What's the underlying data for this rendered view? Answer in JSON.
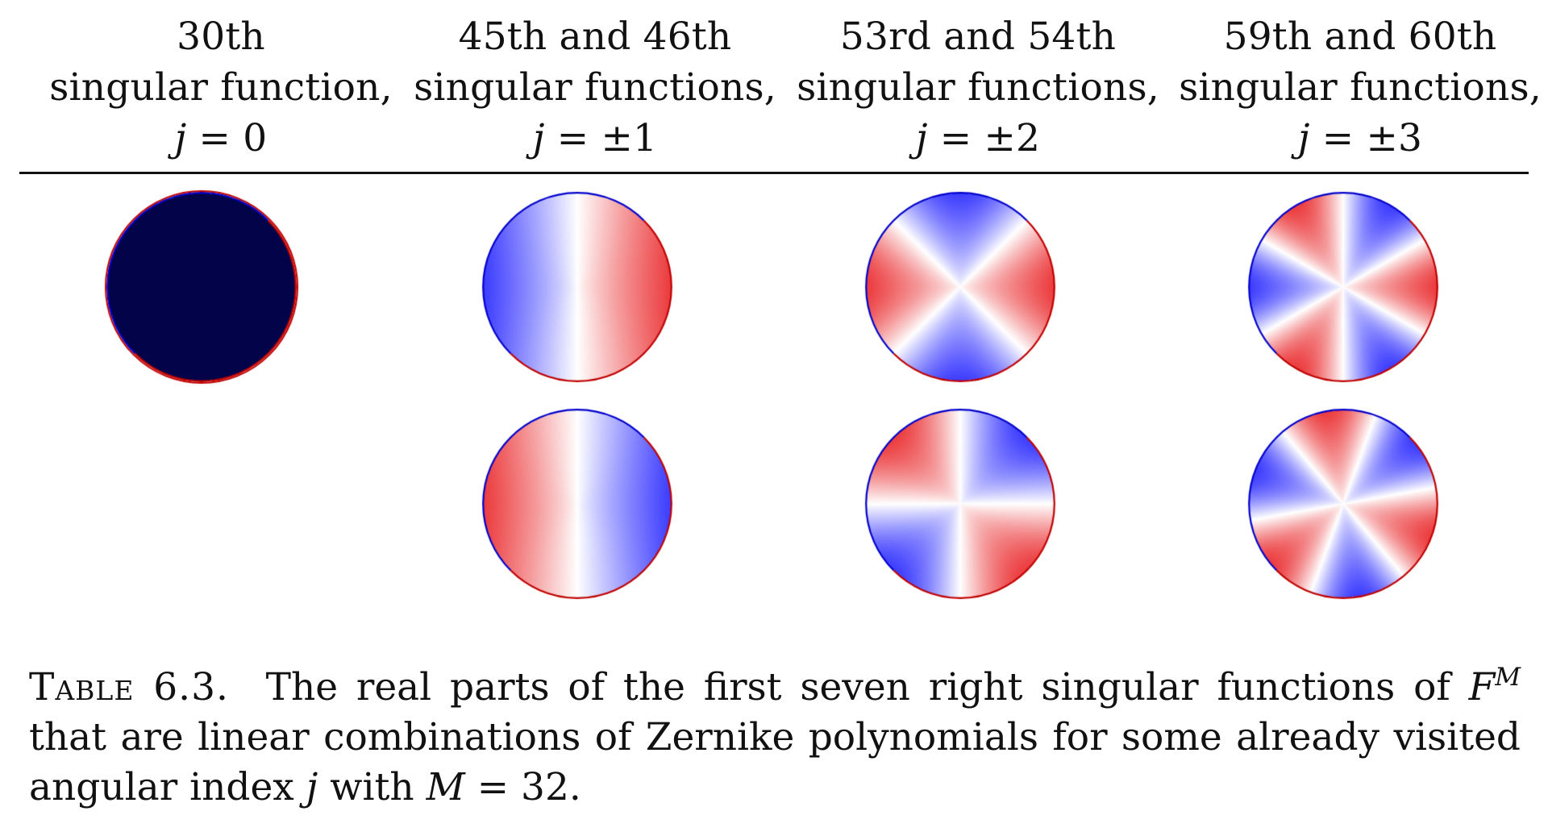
{
  "columns": [
    {
      "line1": "30th",
      "line2": "singular function,",
      "j_var": "j",
      "j_rest": " = 0"
    },
    {
      "line1": "45th and 46th",
      "line2": "singular functions,",
      "j_var": "j",
      "j_rest": " = ±1"
    },
    {
      "line1": "53rd and 54th",
      "line2": "singular functions,",
      "j_var": "j",
      "j_rest": " = ±2"
    },
    {
      "line1": "59th and 60th",
      "line2": "singular functions,",
      "j_var": "j",
      "j_rest": " = ±3"
    }
  ],
  "plots": [
    {
      "name": "disc-j0",
      "j": 0,
      "type": "uniform",
      "fill": "#03034a"
    },
    {
      "name": "disc-j1-a",
      "j": 1,
      "type": "angular",
      "phase_deg": 0
    },
    {
      "name": "disc-j2-a",
      "j": 2,
      "type": "angular",
      "phase_deg": 0
    },
    {
      "name": "disc-j3-a",
      "j": 3,
      "type": "angular",
      "phase_deg": 0
    },
    {
      "name": "disc-j1-b",
      "j": 1,
      "type": "angular",
      "phase_deg": 180
    },
    {
      "name": "disc-j2-b",
      "j": 2,
      "type": "angular",
      "phase_deg": 90
    },
    {
      "name": "disc-j3-b",
      "j": 3,
      "type": "angular",
      "phase_deg": 60
    }
  ],
  "colors": {
    "positive": "#e8191c",
    "negative": "#1a1aff",
    "zero": "#ffffff",
    "ring_red": "#c00000",
    "ring_blue": "#0000cc"
  },
  "caption": {
    "label": "Table 6.3.",
    "text_a": "The real parts of the first seven right singular functions of ",
    "F": "F",
    "M_sup": "M",
    "text_b": " that are linear combinations of Zernike polynomials for some already visited angular index ",
    "j": "j",
    "text_c": " with ",
    "M": "M",
    "text_d": " = 32."
  }
}
